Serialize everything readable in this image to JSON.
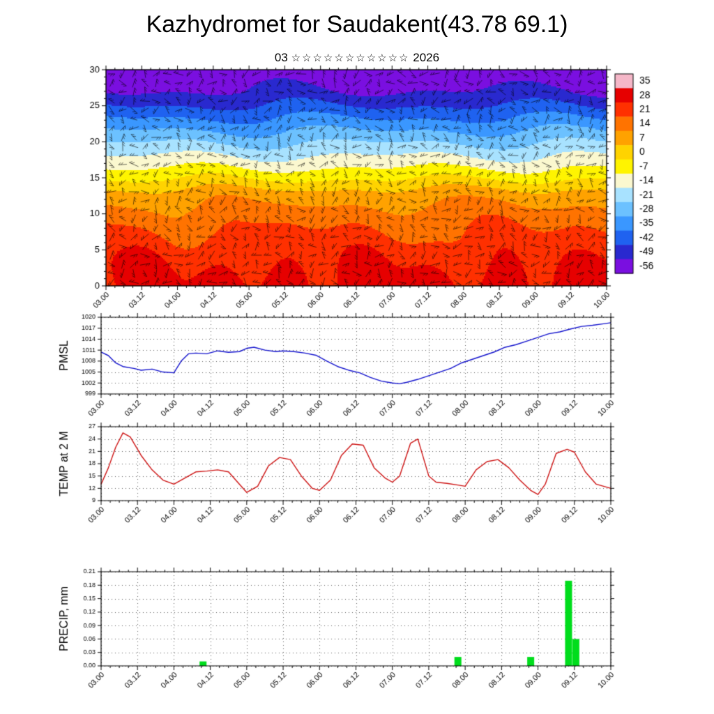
{
  "title": "Kazhydromet for Saudakent(43.78 69.1)",
  "subtitle": {
    "month": "03",
    "stars": "☆☆☆☆☆☆☆☆☆☆☆",
    "year": "2026"
  },
  "x_axis": {
    "start": 3.0,
    "end": 10.0,
    "ticks": [
      "03.00",
      "03.12",
      "04.00",
      "04.12",
      "05.00",
      "05.12",
      "06.00",
      "06.12",
      "07.00",
      "07.12",
      "08.00",
      "08.12",
      "09.00",
      "09.12",
      "10.00"
    ]
  },
  "chart_data": [
    {
      "name": "time-height-cross-section",
      "type": "heatmap",
      "overlay": "wind barbs",
      "ylim": [
        0,
        30
      ],
      "y_ticks": [
        0,
        5,
        10,
        15,
        20,
        25,
        30
      ],
      "colorbar": {
        "ticks": [
          35,
          28,
          21,
          14,
          7,
          0,
          -7,
          -14,
          -21,
          -28,
          -35,
          -42,
          -49,
          -56
        ],
        "colors": [
          "#f5b7c8",
          "#e60000",
          "#ff3000",
          "#ff7300",
          "#ffa200",
          "#ffd300",
          "#fff400",
          "#fbf8cf",
          "#a8e2ff",
          "#6cc1ff",
          "#3a97ff",
          "#1f62f0",
          "#2929cf",
          "#7a0fe0"
        ]
      },
      "profile_heights": [
        0,
        5,
        10,
        13,
        15,
        17,
        19,
        21,
        23,
        25,
        27,
        30
      ],
      "profile_temps": [
        28,
        22,
        14,
        6,
        -4,
        -13,
        -21,
        -29,
        -37,
        -45,
        -52,
        -58
      ],
      "diurnal_amplitude": 4
    },
    {
      "name": "PMSL",
      "type": "line",
      "color": "#1010cc",
      "ylim": [
        999,
        1020
      ],
      "y_ticks": [
        999,
        1002,
        1005,
        1008,
        1011,
        1014,
        1017,
        1020
      ],
      "x": [
        3.0,
        3.1,
        3.2,
        3.3,
        3.45,
        3.55,
        3.7,
        3.85,
        4.0,
        4.1,
        4.2,
        4.3,
        4.45,
        4.6,
        4.75,
        4.9,
        5.0,
        5.1,
        5.25,
        5.4,
        5.5,
        5.65,
        5.8,
        5.95,
        6.1,
        6.25,
        6.4,
        6.55,
        6.7,
        6.85,
        7.0,
        7.1,
        7.2,
        7.35,
        7.5,
        7.65,
        7.8,
        7.95,
        8.1,
        8.25,
        8.4,
        8.55,
        8.7,
        8.85,
        9.0,
        9.15,
        9.3,
        9.45,
        9.6,
        9.75,
        9.9,
        10.0
      ],
      "values": [
        1010.5,
        1009.5,
        1007.5,
        1006.5,
        1006.0,
        1005.5,
        1005.8,
        1005.0,
        1004.8,
        1008.0,
        1010.0,
        1010.2,
        1010.0,
        1010.8,
        1010.4,
        1010.6,
        1011.5,
        1011.8,
        1011.0,
        1010.6,
        1010.8,
        1010.6,
        1010.2,
        1009.6,
        1008.0,
        1006.5,
        1005.5,
        1004.8,
        1003.5,
        1002.5,
        1002.0,
        1001.8,
        1002.2,
        1003.0,
        1004.0,
        1005.0,
        1006.0,
        1007.5,
        1008.5,
        1009.5,
        1010.5,
        1011.8,
        1012.5,
        1013.5,
        1014.5,
        1015.5,
        1016.0,
        1016.8,
        1017.5,
        1017.8,
        1018.2,
        1018.5
      ]
    },
    {
      "name": "TEMP at 2 M",
      "type": "line",
      "color": "#cc1010",
      "ylim": [
        9,
        27
      ],
      "y_ticks": [
        9,
        12,
        15,
        18,
        21,
        24,
        27
      ],
      "x": [
        3.0,
        3.1,
        3.2,
        3.3,
        3.4,
        3.55,
        3.7,
        3.85,
        4.0,
        4.15,
        4.3,
        4.45,
        4.6,
        4.75,
        4.9,
        5.0,
        5.15,
        5.3,
        5.45,
        5.6,
        5.75,
        5.9,
        6.0,
        6.15,
        6.3,
        6.45,
        6.6,
        6.75,
        6.9,
        7.0,
        7.1,
        7.25,
        7.35,
        7.5,
        7.6,
        7.75,
        7.9,
        8.0,
        8.15,
        8.3,
        8.45,
        8.6,
        8.75,
        8.9,
        9.0,
        9.1,
        9.25,
        9.4,
        9.5,
        9.65,
        9.8,
        9.9,
        10.0
      ],
      "values": [
        13,
        17,
        22,
        25.5,
        24.5,
        20,
        16.5,
        14,
        13,
        14.5,
        16,
        16.2,
        16.5,
        16,
        13,
        11,
        12.5,
        17.5,
        19.5,
        19,
        15,
        12,
        11.5,
        14,
        20,
        22.8,
        22.5,
        17,
        14.5,
        13.5,
        15,
        23,
        24,
        15,
        13.5,
        13.2,
        12.8,
        12.5,
        16.5,
        18.5,
        19,
        17,
        14,
        11.5,
        10.5,
        13,
        20.5,
        21.5,
        20.8,
        16,
        13,
        12.5,
        12
      ]
    },
    {
      "name": "PRECIP, mm",
      "type": "bar",
      "color": "#00dd1c",
      "ylim": [
        0,
        0.21
      ],
      "y_ticks": [
        0,
        0.03,
        0.06,
        0.09,
        0.12,
        0.15,
        0.18,
        0.21
      ],
      "y_tick_labels": [
        "0.00",
        "0.03",
        "0.06",
        "0.09",
        "0.12",
        "0.15",
        "0.18",
        "0.21"
      ],
      "bars": [
        {
          "x": 4.4,
          "value": 0.01
        },
        {
          "x": 7.9,
          "value": 0.02
        },
        {
          "x": 8.9,
          "value": 0.02
        },
        {
          "x": 9.42,
          "value": 0.19
        },
        {
          "x": 9.52,
          "value": 0.06
        }
      ]
    }
  ]
}
